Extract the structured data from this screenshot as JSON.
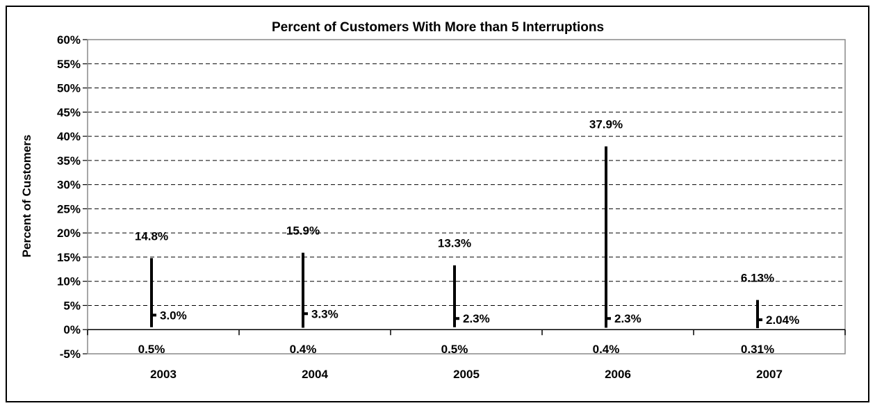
{
  "chart_data": {
    "type": "hi-lo-close",
    "title": "Percent of Customers With More than 5 Interruptions",
    "xlabel": "",
    "ylabel": "Percent of Customers",
    "ylim": [
      -5,
      60
    ],
    "y_tick_step": 5,
    "y_tick_labels": [
      "-5%",
      "0%",
      "5%",
      "10%",
      "15%",
      "20%",
      "25%",
      "30%",
      "35%",
      "40%",
      "45%",
      "50%",
      "55%",
      "60%"
    ],
    "grid": "horizontal dashed",
    "legend": "none",
    "categories": [
      "2003",
      "2004",
      "2005",
      "2006",
      "2007"
    ],
    "series": [
      {
        "name": "",
        "role": "high",
        "values": [
          14.8,
          15.9,
          13.3,
          37.9,
          6.13
        ],
        "labels": [
          "14.8%",
          "15.9%",
          "13.3%",
          "37.9%",
          "6.13%"
        ]
      },
      {
        "name": "",
        "role": "low",
        "values": [
          0.5,
          0.4,
          0.5,
          0.4,
          0.31
        ],
        "labels": [
          "0.5%",
          "0.4%",
          "0.5%",
          "0.4%",
          "0.31%"
        ]
      },
      {
        "name": "",
        "role": "close",
        "values": [
          3.0,
          3.3,
          2.3,
          2.3,
          2.04
        ],
        "labels": [
          "3.0%",
          "3.3%",
          "2.3%",
          "2.3%",
          "2.04%"
        ]
      }
    ]
  }
}
